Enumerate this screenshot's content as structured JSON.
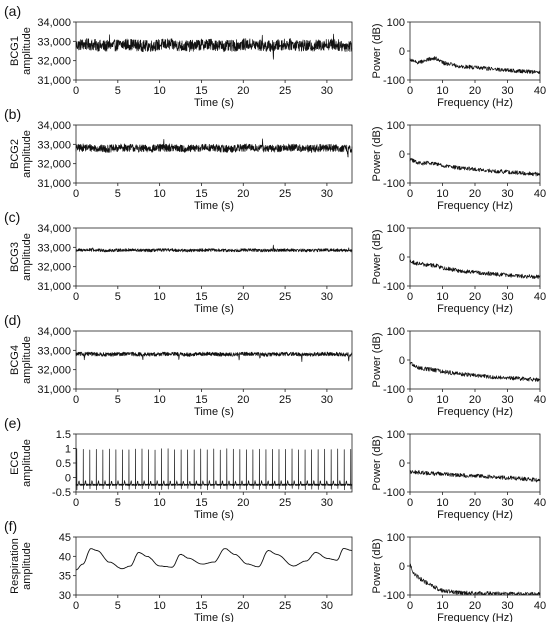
{
  "chart_data": [
    {
      "panel": "(a)",
      "type": "line",
      "xlabel": "Time (s)",
      "ylabel_lines": [
        "BCG1",
        "amplitude"
      ],
      "xlim": [
        0,
        33
      ],
      "ylim": [
        31000,
        34000
      ],
      "xticks": [
        "0",
        "5",
        "10",
        "15",
        "20",
        "25",
        "30"
      ],
      "yticks": [
        "31,000",
        "32,000",
        "33,000",
        "34,000"
      ],
      "signal": {
        "kind": "noise",
        "baseline": 32800,
        "amplitude": 300,
        "spikes": [
          [
            23.6,
            -700
          ],
          [
            4.0,
            500
          ],
          [
            22.3,
            450
          ],
          [
            30.8,
            400
          ]
        ]
      },
      "spectrum": {
        "xlabel": "Frequency (Hz)",
        "ylabel": "Power (dB)",
        "xlim": [
          0,
          40
        ],
        "ylim": [
          -100,
          100
        ],
        "xticks": [
          "0",
          "10",
          "20",
          "30",
          "40"
        ],
        "yticks": [
          "-100",
          "0",
          "100"
        ],
        "points": [
          [
            0,
            -30
          ],
          [
            2,
            -40
          ],
          [
            4,
            -35
          ],
          [
            6,
            -28
          ],
          [
            8,
            -25
          ],
          [
            10,
            -40
          ],
          [
            15,
            -52
          ],
          [
            20,
            -57
          ],
          [
            25,
            -62
          ],
          [
            30,
            -67
          ],
          [
            35,
            -70
          ],
          [
            40,
            -73
          ]
        ]
      }
    },
    {
      "panel": "(b)",
      "type": "line",
      "xlabel": "Time (s)",
      "ylabel_lines": [
        "BCG2",
        "amplitude"
      ],
      "xlim": [
        0,
        33
      ],
      "ylim": [
        31000,
        34000
      ],
      "xticks": [
        "0",
        "5",
        "10",
        "15",
        "20",
        "25",
        "30"
      ],
      "yticks": [
        "31,000",
        "32,000",
        "33,000",
        "34,000"
      ],
      "signal": {
        "kind": "noise",
        "baseline": 32800,
        "amplitude": 200,
        "spikes": [
          [
            22.3,
            700
          ],
          [
            32.5,
            -500
          ],
          [
            10.5,
            300
          ],
          [
            26.3,
            300
          ]
        ]
      },
      "spectrum": {
        "xlabel": "Frequency (Hz)",
        "ylabel": "Power (dB)",
        "xlim": [
          0,
          40
        ],
        "ylim": [
          -100,
          100
        ],
        "xticks": [
          "0",
          "10",
          "20",
          "30",
          "40"
        ],
        "yticks": [
          "-100",
          "0",
          "100"
        ],
        "points": [
          [
            0,
            -20
          ],
          [
            2,
            -28
          ],
          [
            4,
            -32
          ],
          [
            6,
            -30
          ],
          [
            8,
            -32
          ],
          [
            10,
            -40
          ],
          [
            15,
            -48
          ],
          [
            20,
            -53
          ],
          [
            25,
            -58
          ],
          [
            30,
            -62
          ],
          [
            35,
            -66
          ],
          [
            40,
            -70
          ]
        ]
      }
    },
    {
      "panel": "(c)",
      "type": "line",
      "xlabel": "Time (s)",
      "ylabel_lines": [
        "BCG3",
        "amplitude"
      ],
      "xlim": [
        0,
        33
      ],
      "ylim": [
        31000,
        34000
      ],
      "xticks": [
        "0",
        "5",
        "10",
        "15",
        "20",
        "25",
        "30"
      ],
      "yticks": [
        "31,000",
        "32,000",
        "33,000",
        "34,000"
      ],
      "signal": {
        "kind": "noise",
        "baseline": 32850,
        "amplitude": 80,
        "spikes": [
          [
            23.6,
            350
          ],
          [
            2.0,
            150
          ],
          [
            32.6,
            120
          ]
        ]
      },
      "spectrum": {
        "xlabel": "Frequency (Hz)",
        "ylabel": "Power (dB)",
        "xlim": [
          0,
          40
        ],
        "ylim": [
          -100,
          100
        ],
        "xticks": [
          "0",
          "10",
          "20",
          "30",
          "40"
        ],
        "yticks": [
          "-100",
          "0",
          "100"
        ],
        "points": [
          [
            0,
            -15
          ],
          [
            2,
            -22
          ],
          [
            4,
            -25
          ],
          [
            6,
            -28
          ],
          [
            8,
            -30
          ],
          [
            10,
            -38
          ],
          [
            15,
            -47
          ],
          [
            20,
            -53
          ],
          [
            25,
            -58
          ],
          [
            30,
            -63
          ],
          [
            35,
            -66
          ],
          [
            40,
            -69
          ]
        ]
      }
    },
    {
      "panel": "(d)",
      "type": "line",
      "xlabel": "Time (s)",
      "ylabel_lines": [
        "BCG4",
        "amplitude"
      ],
      "xlim": [
        0,
        33
      ],
      "ylim": [
        31000,
        34000
      ],
      "xticks": [
        "0",
        "5",
        "10",
        "15",
        "20",
        "25",
        "30"
      ],
      "yticks": [
        "31,000",
        "32,000",
        "33,000",
        "34,000"
      ],
      "signal": {
        "kind": "noise",
        "baseline": 32800,
        "amplitude": 100,
        "spikes": [
          [
            1.0,
            -300
          ],
          [
            8.0,
            -250
          ],
          [
            12.3,
            -300
          ],
          [
            19.5,
            -250
          ],
          [
            22.0,
            -200
          ],
          [
            27.0,
            -350
          ],
          [
            32.6,
            -350
          ]
        ]
      },
      "spectrum": {
        "xlabel": "Frequency (Hz)",
        "ylabel": "Power (dB)",
        "xlim": [
          0,
          40
        ],
        "ylim": [
          -100,
          100
        ],
        "xticks": [
          "0",
          "10",
          "20",
          "30",
          "40"
        ],
        "yticks": [
          "-100",
          "0",
          "100"
        ],
        "points": [
          [
            0,
            -10
          ],
          [
            2,
            -25
          ],
          [
            4,
            -30
          ],
          [
            6,
            -32
          ],
          [
            8,
            -35
          ],
          [
            10,
            -40
          ],
          [
            15,
            -48
          ],
          [
            20,
            -53
          ],
          [
            25,
            -58
          ],
          [
            30,
            -62
          ],
          [
            35,
            -65
          ],
          [
            40,
            -68
          ]
        ]
      }
    },
    {
      "panel": "(e)",
      "type": "line",
      "xlabel": "Time (s)",
      "ylabel_lines": [
        "ECG",
        "amplitude"
      ],
      "xlim": [
        0,
        33
      ],
      "ylim": [
        -0.5,
        1.5
      ],
      "xticks": [
        "0",
        "5",
        "10",
        "15",
        "20",
        "25",
        "30"
      ],
      "yticks": [
        "-0.5",
        "0",
        "0.5",
        "1",
        "1.5"
      ],
      "signal": {
        "kind": "ecg",
        "period": 0.78,
        "baseline": -0.25,
        "peak": 1.0
      },
      "spectrum": {
        "xlabel": "Frequency (Hz)",
        "ylabel": "Power (dB)",
        "xlim": [
          0,
          40
        ],
        "ylim": [
          -100,
          100
        ],
        "xticks": [
          "0",
          "10",
          "20",
          "30",
          "40"
        ],
        "yticks": [
          "-100",
          "0",
          "100"
        ],
        "points": [
          [
            0,
            -30
          ],
          [
            5,
            -35
          ],
          [
            10,
            -38
          ],
          [
            15,
            -42
          ],
          [
            20,
            -45
          ],
          [
            25,
            -48
          ],
          [
            30,
            -51
          ],
          [
            35,
            -55
          ],
          [
            40,
            -60
          ]
        ]
      }
    },
    {
      "panel": "(f)",
      "type": "line",
      "xlabel": "Time (s)",
      "ylabel_lines": [
        "Respiration",
        "amplitude"
      ],
      "xlim": [
        0,
        33
      ],
      "ylim": [
        30,
        45
      ],
      "xticks": [
        "0",
        "5",
        "10",
        "15",
        "20",
        "25",
        "30"
      ],
      "yticks": [
        "30",
        "35",
        "40",
        "45"
      ],
      "signal": {
        "kind": "resp",
        "points": [
          [
            0,
            36.5
          ],
          [
            0.8,
            38
          ],
          [
            1.8,
            42
          ],
          [
            2.5,
            41.5
          ],
          [
            4,
            38.5
          ],
          [
            5.5,
            36.8
          ],
          [
            6.5,
            37.5
          ],
          [
            7.5,
            41
          ],
          [
            8.5,
            40
          ],
          [
            10,
            37.5
          ],
          [
            11.5,
            37.2
          ],
          [
            12.5,
            40.5
          ],
          [
            13.5,
            39.5
          ],
          [
            15,
            38
          ],
          [
            16.5,
            38.5
          ],
          [
            17.8,
            42
          ],
          [
            19,
            40.5
          ],
          [
            20.5,
            38
          ],
          [
            21.8,
            37.3
          ],
          [
            23,
            41.5
          ],
          [
            24,
            40.5
          ],
          [
            26,
            37.5
          ],
          [
            27.5,
            38.8
          ],
          [
            28.7,
            41
          ],
          [
            30,
            39.5
          ],
          [
            31.2,
            39
          ],
          [
            32,
            42
          ],
          [
            33,
            41.5
          ]
        ]
      },
      "spectrum": {
        "xlabel": "Frequency (Hz)",
        "ylabel": "Power (dB)",
        "xlim": [
          0,
          40
        ],
        "ylim": [
          -100,
          100
        ],
        "xticks": [
          "0",
          "10",
          "20",
          "30",
          "40"
        ],
        "yticks": [
          "-100",
          "0",
          "100"
        ],
        "points": [
          [
            0,
            5
          ],
          [
            1,
            -25
          ],
          [
            2,
            -35
          ],
          [
            4,
            -50
          ],
          [
            6,
            -65
          ],
          [
            8,
            -75
          ],
          [
            10,
            -85
          ],
          [
            15,
            -92
          ],
          [
            20,
            -94
          ],
          [
            30,
            -96
          ],
          [
            40,
            -97
          ]
        ]
      }
    }
  ]
}
